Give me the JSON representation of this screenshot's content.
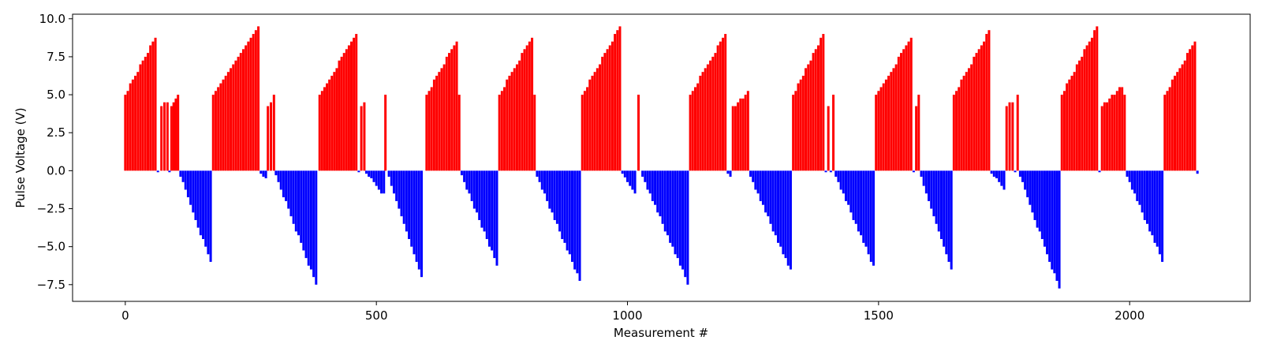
{
  "chart_data": {
    "type": "bar",
    "title": "",
    "xlabel": "Measurement #",
    "ylabel": "Pulse Voltage (V)",
    "xlim": [
      -105,
      2240
    ],
    "ylim": [
      -8.6,
      10.3
    ],
    "x_ticks": [
      0,
      500,
      1000,
      1500,
      2000
    ],
    "x_tick_labels": [
      "0",
      "500",
      "1000",
      "1500",
      "2000"
    ],
    "y_ticks": [
      10.0,
      7.5,
      5.0,
      2.5,
      0.0,
      -2.5,
      -5.0,
      -7.5
    ],
    "y_tick_labels": [
      "10.0",
      "7.5",
      "5.0",
      "2.5",
      "0.0",
      "−2.5",
      "−5.0",
      "−7.5"
    ],
    "grid": false,
    "bar_width": 3,
    "colors": {
      "positive": "#ff0000",
      "negative": "#0000ff",
      "axes": "#000000"
    },
    "segments": [
      {
        "sign": "pos",
        "x_start": 0,
        "x_end": 60,
        "v_start": 5.0,
        "v_end": 8.8
      },
      {
        "sign": "neg",
        "x_start": 65,
        "x_end": 65,
        "v_start": -0.1,
        "v_end": -0.1
      },
      {
        "sign": "pos",
        "x_start": 72,
        "x_end": 84,
        "v_start": 4.2,
        "v_end": 4.6
      },
      {
        "sign": "neg",
        "x_start": 88,
        "x_end": 88,
        "v_start": -0.1,
        "v_end": -0.1
      },
      {
        "sign": "pos",
        "x_start": 92,
        "x_end": 105,
        "v_start": 4.2,
        "v_end": 5.0
      },
      {
        "sign": "neg",
        "x_start": 110,
        "x_end": 170,
        "v_start": -0.4,
        "v_end": -6.0
      },
      {
        "sign": "pos",
        "x_start": 175,
        "x_end": 265,
        "v_start": 5.0,
        "v_end": 9.4
      },
      {
        "sign": "neg",
        "x_start": 270,
        "x_end": 280,
        "v_start": -0.2,
        "v_end": -0.6
      },
      {
        "sign": "pos",
        "x_start": 284,
        "x_end": 296,
        "v_start": 4.2,
        "v_end": 5.0
      },
      {
        "sign": "neg",
        "x_start": 300,
        "x_end": 380,
        "v_start": -0.3,
        "v_end": -7.5
      },
      {
        "sign": "pos",
        "x_start": 387,
        "x_end": 460,
        "v_start": 5.0,
        "v_end": 9.0
      },
      {
        "sign": "neg",
        "x_start": 465,
        "x_end": 465,
        "v_start": -0.1,
        "v_end": -0.1
      },
      {
        "sign": "pos",
        "x_start": 470,
        "x_end": 476,
        "v_start": 4.2,
        "v_end": 4.4
      },
      {
        "sign": "neg",
        "x_start": 480,
        "x_end": 515,
        "v_start": -0.2,
        "v_end": -1.6
      },
      {
        "sign": "pos",
        "x_start": 518,
        "x_end": 520,
        "v_start": 5.0,
        "v_end": 5.0
      },
      {
        "sign": "neg",
        "x_start": 525,
        "x_end": 590,
        "v_start": -0.4,
        "v_end": -7.0
      },
      {
        "sign": "pos",
        "x_start": 600,
        "x_end": 660,
        "v_start": 5.0,
        "v_end": 8.6
      },
      {
        "sign": "pos",
        "x_start": 665,
        "x_end": 665,
        "v_start": 5.0,
        "v_end": 5.0
      },
      {
        "sign": "neg",
        "x_start": 670,
        "x_end": 740,
        "v_start": -0.3,
        "v_end": -6.2
      },
      {
        "sign": "pos",
        "x_start": 745,
        "x_end": 810,
        "v_start": 5.0,
        "v_end": 8.8
      },
      {
        "sign": "pos",
        "x_start": 815,
        "x_end": 815,
        "v_start": 5.0,
        "v_end": 5.0
      },
      {
        "sign": "neg",
        "x_start": 820,
        "x_end": 905,
        "v_start": -0.4,
        "v_end": -7.2
      },
      {
        "sign": "pos",
        "x_start": 910,
        "x_end": 985,
        "v_start": 5.0,
        "v_end": 9.5
      },
      {
        "sign": "neg",
        "x_start": 990,
        "x_end": 1015,
        "v_start": -0.2,
        "v_end": -1.4
      },
      {
        "sign": "pos",
        "x_start": 1022,
        "x_end": 1022,
        "v_start": 5.0,
        "v_end": 5.0
      },
      {
        "sign": "neg",
        "x_start": 1030,
        "x_end": 1120,
        "v_start": -0.4,
        "v_end": -7.4
      },
      {
        "sign": "pos",
        "x_start": 1125,
        "x_end": 1195,
        "v_start": 5.0,
        "v_end": 9.0
      },
      {
        "sign": "neg",
        "x_start": 1200,
        "x_end": 1205,
        "v_start": -0.2,
        "v_end": -0.4
      },
      {
        "sign": "pos",
        "x_start": 1210,
        "x_end": 1240,
        "v_start": 4.2,
        "v_end": 5.2
      },
      {
        "sign": "neg",
        "x_start": 1245,
        "x_end": 1325,
        "v_start": -0.4,
        "v_end": -6.6
      },
      {
        "sign": "pos",
        "x_start": 1330,
        "x_end": 1390,
        "v_start": 5.0,
        "v_end": 9.0
      },
      {
        "sign": "neg",
        "x_start": 1395,
        "x_end": 1395,
        "v_start": -0.1,
        "v_end": -0.1
      },
      {
        "sign": "pos",
        "x_start": 1400,
        "x_end": 1400,
        "v_start": 4.2,
        "v_end": 4.2
      },
      {
        "sign": "neg",
        "x_start": 1405,
        "x_end": 1405,
        "v_start": -0.1,
        "v_end": -0.1
      },
      {
        "sign": "pos",
        "x_start": 1410,
        "x_end": 1410,
        "v_start": 5.0,
        "v_end": 5.0
      },
      {
        "sign": "neg",
        "x_start": 1415,
        "x_end": 1490,
        "v_start": -0.4,
        "v_end": -6.3
      },
      {
        "sign": "pos",
        "x_start": 1495,
        "x_end": 1565,
        "v_start": 5.0,
        "v_end": 8.7
      },
      {
        "sign": "neg",
        "x_start": 1570,
        "x_end": 1570,
        "v_start": -0.1,
        "v_end": -0.1
      },
      {
        "sign": "pos",
        "x_start": 1575,
        "x_end": 1575,
        "v_start": 4.2,
        "v_end": 4.2
      },
      {
        "sign": "pos",
        "x_start": 1580,
        "x_end": 1580,
        "v_start": 5.0,
        "v_end": 5.0
      },
      {
        "sign": "neg",
        "x_start": 1585,
        "x_end": 1645,
        "v_start": -0.4,
        "v_end": -6.4
      },
      {
        "sign": "pos",
        "x_start": 1650,
        "x_end": 1720,
        "v_start": 5.0,
        "v_end": 9.2
      },
      {
        "sign": "neg",
        "x_start": 1725,
        "x_end": 1750,
        "v_start": -0.2,
        "v_end": -1.2
      },
      {
        "sign": "pos",
        "x_start": 1755,
        "x_end": 1767,
        "v_start": 4.2,
        "v_end": 4.6
      },
      {
        "sign": "neg",
        "x_start": 1772,
        "x_end": 1772,
        "v_start": -0.1,
        "v_end": -0.1
      },
      {
        "sign": "pos",
        "x_start": 1777,
        "x_end": 1777,
        "v_start": 5.0,
        "v_end": 5.0
      },
      {
        "sign": "neg",
        "x_start": 1782,
        "x_end": 1860,
        "v_start": -0.4,
        "v_end": -7.8
      },
      {
        "sign": "pos",
        "x_start": 1865,
        "x_end": 1935,
        "v_start": 5.0,
        "v_end": 9.5
      },
      {
        "sign": "neg",
        "x_start": 1940,
        "x_end": 1940,
        "v_start": -0.1,
        "v_end": -0.1
      },
      {
        "sign": "pos",
        "x_start": 1945,
        "x_end": 1985,
        "v_start": 4.2,
        "v_end": 5.6
      },
      {
        "sign": "pos",
        "x_start": 1990,
        "x_end": 1990,
        "v_start": 5.0,
        "v_end": 5.0
      },
      {
        "sign": "neg",
        "x_start": 1995,
        "x_end": 2065,
        "v_start": -0.4,
        "v_end": -5.9
      },
      {
        "sign": "pos",
        "x_start": 2070,
        "x_end": 2130,
        "v_start": 5.0,
        "v_end": 8.5
      },
      {
        "sign": "neg",
        "x_start": 2135,
        "x_end": 2135,
        "v_start": -0.2,
        "v_end": -0.2
      }
    ]
  }
}
